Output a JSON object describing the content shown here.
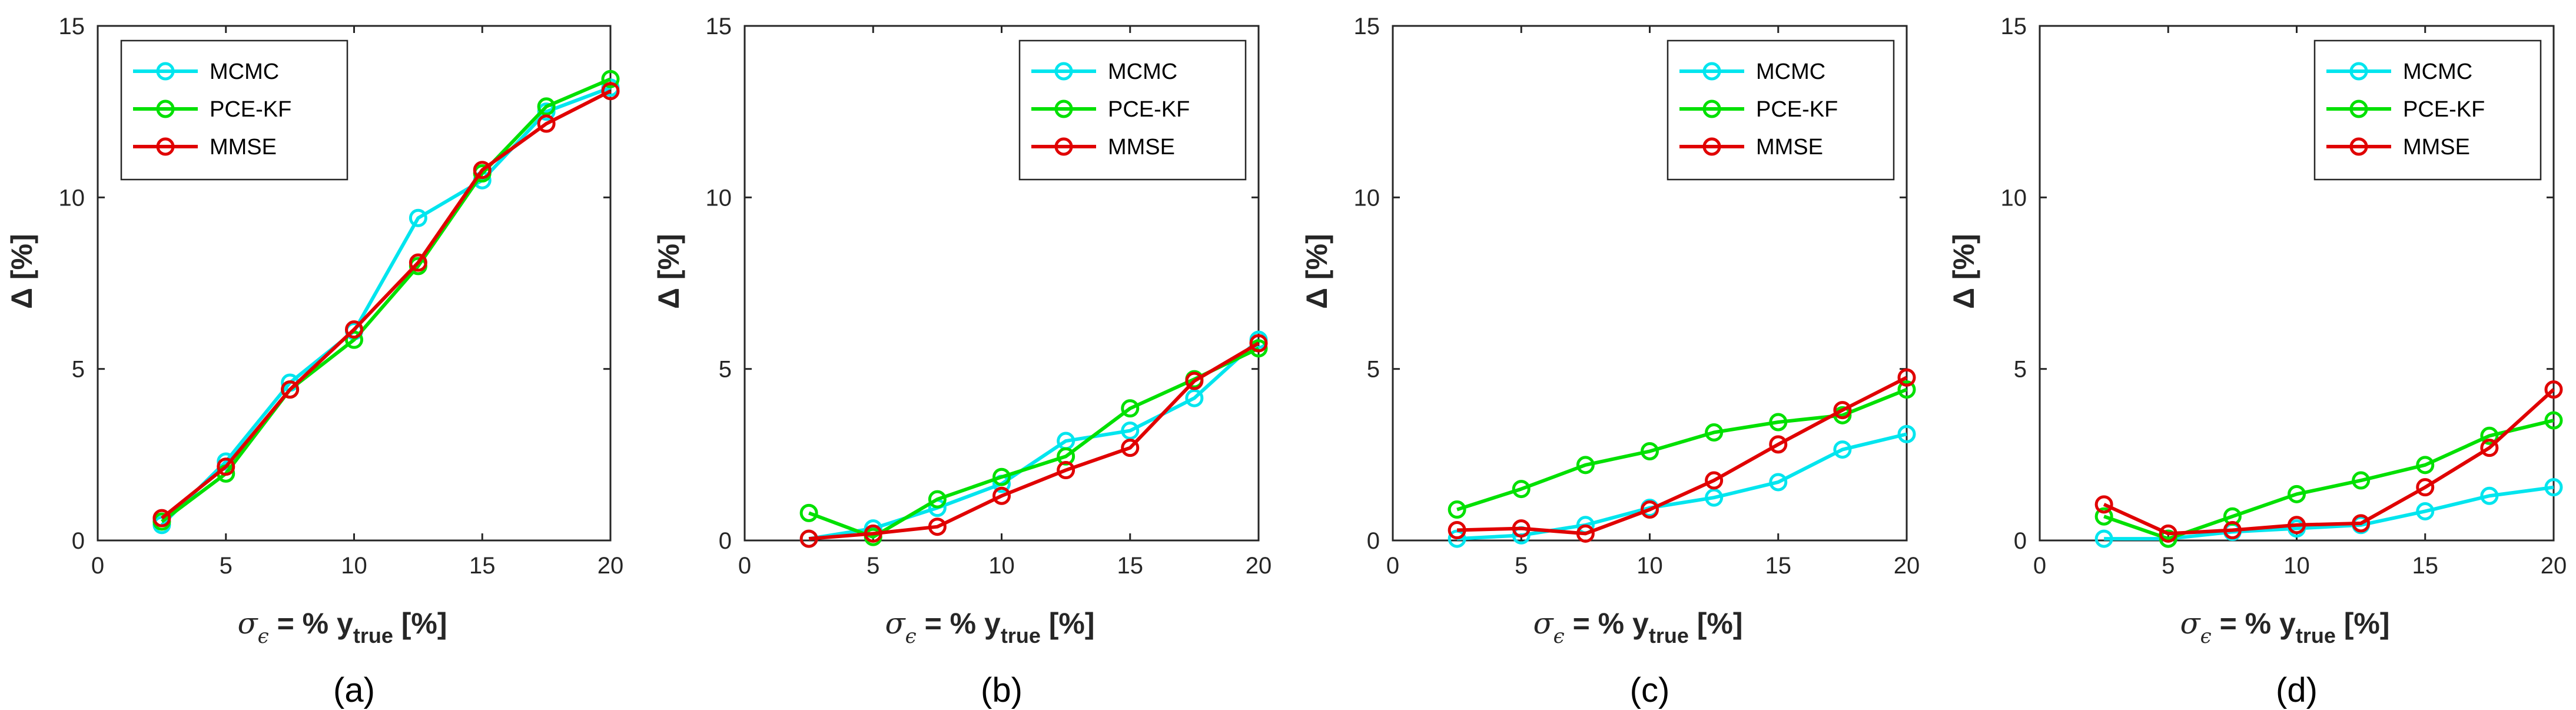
{
  "figure": {
    "xlabel_prefix": "σ",
    "xlabel_sub_eps": "ϵ",
    "xlabel_mid": " = % y",
    "xlabel_sub_true": "true",
    "xlabel_suffix": " [%]",
    "ylabel": "Δ [%]",
    "series_styles": [
      {
        "name": "MCMC",
        "color": "#00e5ee"
      },
      {
        "name": "PCE-KF",
        "color": "#00e000"
      },
      {
        "name": "MMSE",
        "color": "#e00000"
      }
    ]
  },
  "chart_data": [
    {
      "type": "line",
      "panel_label": "(a)",
      "x": [
        2.5,
        5,
        7.5,
        10,
        12.5,
        15,
        17.5,
        20
      ],
      "xlim": [
        0,
        20
      ],
      "ylim": [
        0,
        15
      ],
      "xticks": [
        0,
        5,
        10,
        15,
        20
      ],
      "yticks": [
        0,
        5,
        10,
        15
      ],
      "xlabel": "σϵ = % ytrue [%]",
      "ylabel": "Δ [%]",
      "legend": "top-left",
      "series": [
        {
          "name": "MCMC",
          "values": [
            0.45,
            2.3,
            4.6,
            6.1,
            9.4,
            10.5,
            12.5,
            13.2
          ]
        },
        {
          "name": "PCE-KF",
          "values": [
            0.55,
            1.95,
            4.4,
            5.85,
            8.0,
            10.7,
            12.65,
            13.45
          ]
        },
        {
          "name": "MMSE",
          "values": [
            0.65,
            2.15,
            4.4,
            6.15,
            8.1,
            10.8,
            12.15,
            13.1
          ]
        }
      ]
    },
    {
      "type": "line",
      "panel_label": "(b)",
      "x": [
        2.5,
        5,
        7.5,
        10,
        12.5,
        15,
        17.5,
        20
      ],
      "xlim": [
        0,
        20
      ],
      "ylim": [
        0,
        15
      ],
      "xticks": [
        0,
        5,
        10,
        15,
        20
      ],
      "yticks": [
        0,
        5,
        10,
        15
      ],
      "xlabel": "σϵ = % ytrue [%]",
      "ylabel": "Δ [%]",
      "legend": "top-right",
      "series": [
        {
          "name": "MCMC",
          "values": [
            0.05,
            0.35,
            0.95,
            1.65,
            2.9,
            3.2,
            4.15,
            5.85
          ]
        },
        {
          "name": "PCE-KF",
          "values": [
            0.8,
            0.1,
            1.2,
            1.85,
            2.45,
            3.85,
            4.7,
            5.6
          ]
        },
        {
          "name": "MMSE",
          "values": [
            0.05,
            0.2,
            0.4,
            1.3,
            2.05,
            2.7,
            4.65,
            5.75
          ]
        }
      ]
    },
    {
      "type": "line",
      "panel_label": "(c)",
      "x": [
        2.5,
        5,
        7.5,
        10,
        12.5,
        15,
        17.5,
        20
      ],
      "xlim": [
        0,
        20
      ],
      "ylim": [
        0,
        15
      ],
      "xticks": [
        0,
        5,
        10,
        15,
        20
      ],
      "yticks": [
        0,
        5,
        10,
        15
      ],
      "xlabel": "σϵ = % ytrue [%]",
      "ylabel": "Δ [%]",
      "legend": "top-right",
      "series": [
        {
          "name": "MCMC",
          "values": [
            0.05,
            0.15,
            0.45,
            0.95,
            1.25,
            1.7,
            2.65,
            3.1
          ]
        },
        {
          "name": "PCE-KF",
          "values": [
            0.9,
            1.5,
            2.2,
            2.6,
            3.15,
            3.45,
            3.65,
            4.4
          ]
        },
        {
          "name": "MMSE",
          "values": [
            0.3,
            0.35,
            0.2,
            0.9,
            1.75,
            2.8,
            3.8,
            4.75
          ]
        }
      ]
    },
    {
      "type": "line",
      "panel_label": "(d)",
      "x": [
        2.5,
        5,
        7.5,
        10,
        12.5,
        15,
        17.5,
        20
      ],
      "xlim": [
        0,
        20
      ],
      "ylim": [
        0,
        15
      ],
      "xticks": [
        0,
        5,
        10,
        15,
        20
      ],
      "yticks": [
        0,
        5,
        10,
        15
      ],
      "xlabel": "σϵ = % ytrue [%]",
      "ylabel": "Δ [%]",
      "legend": "top-right",
      "series": [
        {
          "name": "MCMC",
          "values": [
            0.05,
            0.05,
            0.25,
            0.35,
            0.45,
            0.85,
            1.3,
            1.55
          ]
        },
        {
          "name": "PCE-KF",
          "values": [
            0.7,
            0.05,
            0.7,
            1.35,
            1.75,
            2.2,
            3.05,
            3.5
          ]
        },
        {
          "name": "MMSE",
          "values": [
            1.05,
            0.2,
            0.3,
            0.45,
            0.5,
            1.55,
            2.7,
            4.4
          ]
        }
      ]
    }
  ]
}
